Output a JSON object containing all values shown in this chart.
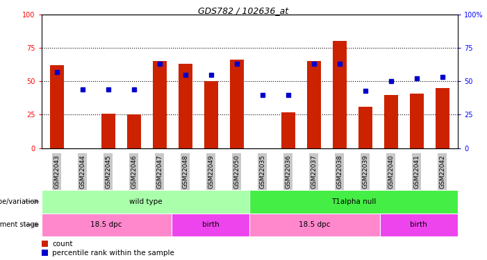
{
  "title": "GDS782 / 102636_at",
  "samples": [
    "GSM22043",
    "GSM22044",
    "GSM22045",
    "GSM22046",
    "GSM22047",
    "GSM22048",
    "GSM22049",
    "GSM22050",
    "GSM22035",
    "GSM22036",
    "GSM22037",
    "GSM22038",
    "GSM22039",
    "GSM22040",
    "GSM22041",
    "GSM22042"
  ],
  "counts": [
    62,
    0,
    26,
    25,
    65,
    63,
    50,
    66,
    0,
    27,
    65,
    80,
    31,
    40,
    41,
    45
  ],
  "percentiles": [
    57,
    44,
    44,
    44,
    63,
    55,
    55,
    63,
    40,
    40,
    63,
    63,
    43,
    50,
    52,
    53
  ],
  "bar_color": "#CC2200",
  "dot_color": "#0000CC",
  "left_yticks": [
    0,
    25,
    50,
    75,
    100
  ],
  "right_yticklabels": [
    "0",
    "25",
    "50",
    "75",
    "100%"
  ],
  "grid_levels": [
    25,
    50,
    75
  ],
  "genotype_groups": [
    {
      "label": "wild type",
      "start": 0,
      "end": 8,
      "color": "#AAFFAA"
    },
    {
      "label": "T1alpha null",
      "start": 8,
      "end": 16,
      "color": "#44EE44"
    }
  ],
  "stage_groups": [
    {
      "label": "18.5 dpc",
      "start": 0,
      "end": 5,
      "color": "#FF88CC"
    },
    {
      "label": "birth",
      "start": 5,
      "end": 8,
      "color": "#EE44EE"
    },
    {
      "label": "18.5 dpc",
      "start": 8,
      "end": 13,
      "color": "#FF88CC"
    },
    {
      "label": "birth",
      "start": 13,
      "end": 16,
      "color": "#EE44EE"
    }
  ],
  "legend_count_label": "count",
  "legend_percentile_label": "percentile rank within the sample",
  "genotype_row_label": "genotype/variation",
  "stage_row_label": "development stage",
  "tick_bg_color": "#C8C8C8"
}
